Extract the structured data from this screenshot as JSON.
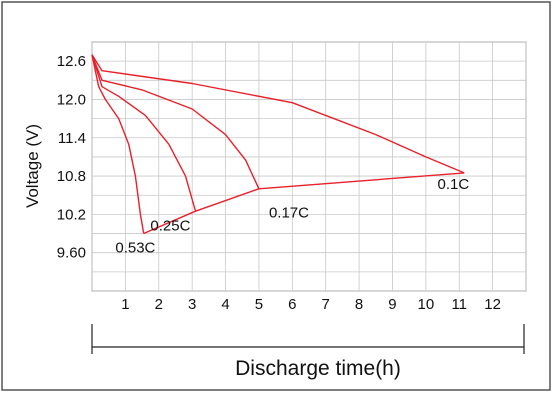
{
  "chart_data": {
    "type": "line",
    "title": "",
    "xlabel": "Discharge time(h)",
    "ylabel": "Voltage (V)",
    "xlim": [
      0,
      13
    ],
    "ylim": [
      9.0,
      12.9
    ],
    "x_ticks": [
      "1",
      "2",
      "3",
      "4",
      "5",
      "6",
      "7",
      "8",
      "9",
      "10",
      "11",
      "12"
    ],
    "y_ticks": [
      "12.6",
      "12.0",
      "11.4",
      "10.8",
      "10.2",
      "9.60"
    ],
    "grid": true,
    "line_color": "#e8202a",
    "series": [
      {
        "name": "0.53C",
        "points": [
          [
            0,
            12.7
          ],
          [
            0.2,
            12.2
          ],
          [
            0.4,
            12.0
          ],
          [
            0.8,
            11.7
          ],
          [
            1.1,
            11.3
          ],
          [
            1.3,
            10.8
          ],
          [
            1.45,
            10.2
          ],
          [
            1.55,
            9.9
          ]
        ]
      },
      {
        "name": "0.25C",
        "points": [
          [
            0,
            12.7
          ],
          [
            0.3,
            12.2
          ],
          [
            0.8,
            12.05
          ],
          [
            1.6,
            11.75
          ],
          [
            2.3,
            11.3
          ],
          [
            2.8,
            10.8
          ],
          [
            3.1,
            10.25
          ]
        ]
      },
      {
        "name": "0.17C",
        "points": [
          [
            0,
            12.7
          ],
          [
            0.3,
            12.3
          ],
          [
            1.5,
            12.15
          ],
          [
            3.0,
            11.85
          ],
          [
            4.0,
            11.45
          ],
          [
            4.6,
            11.05
          ],
          [
            5.0,
            10.6
          ]
        ]
      },
      {
        "name": "0.1C",
        "points": [
          [
            0,
            12.7
          ],
          [
            0.3,
            12.45
          ],
          [
            3.0,
            12.25
          ],
          [
            6.0,
            11.95
          ],
          [
            8.5,
            11.45
          ],
          [
            10.0,
            11.1
          ],
          [
            11.15,
            10.85
          ]
        ]
      },
      {
        "name": "",
        "points": [
          [
            1.55,
            9.9
          ],
          [
            3.1,
            10.25
          ],
          [
            5.0,
            10.6
          ],
          [
            11.15,
            10.85
          ]
        ]
      }
    ],
    "labels": [
      {
        "text": "0.53C",
        "x": 0.7,
        "y": 9.6
      },
      {
        "text": "0.25C",
        "x": 1.75,
        "y": 9.95
      },
      {
        "text": "0.17C",
        "x": 5.3,
        "y": 10.15
      },
      {
        "text": "0.1C",
        "x": 10.35,
        "y": 10.6
      }
    ]
  }
}
